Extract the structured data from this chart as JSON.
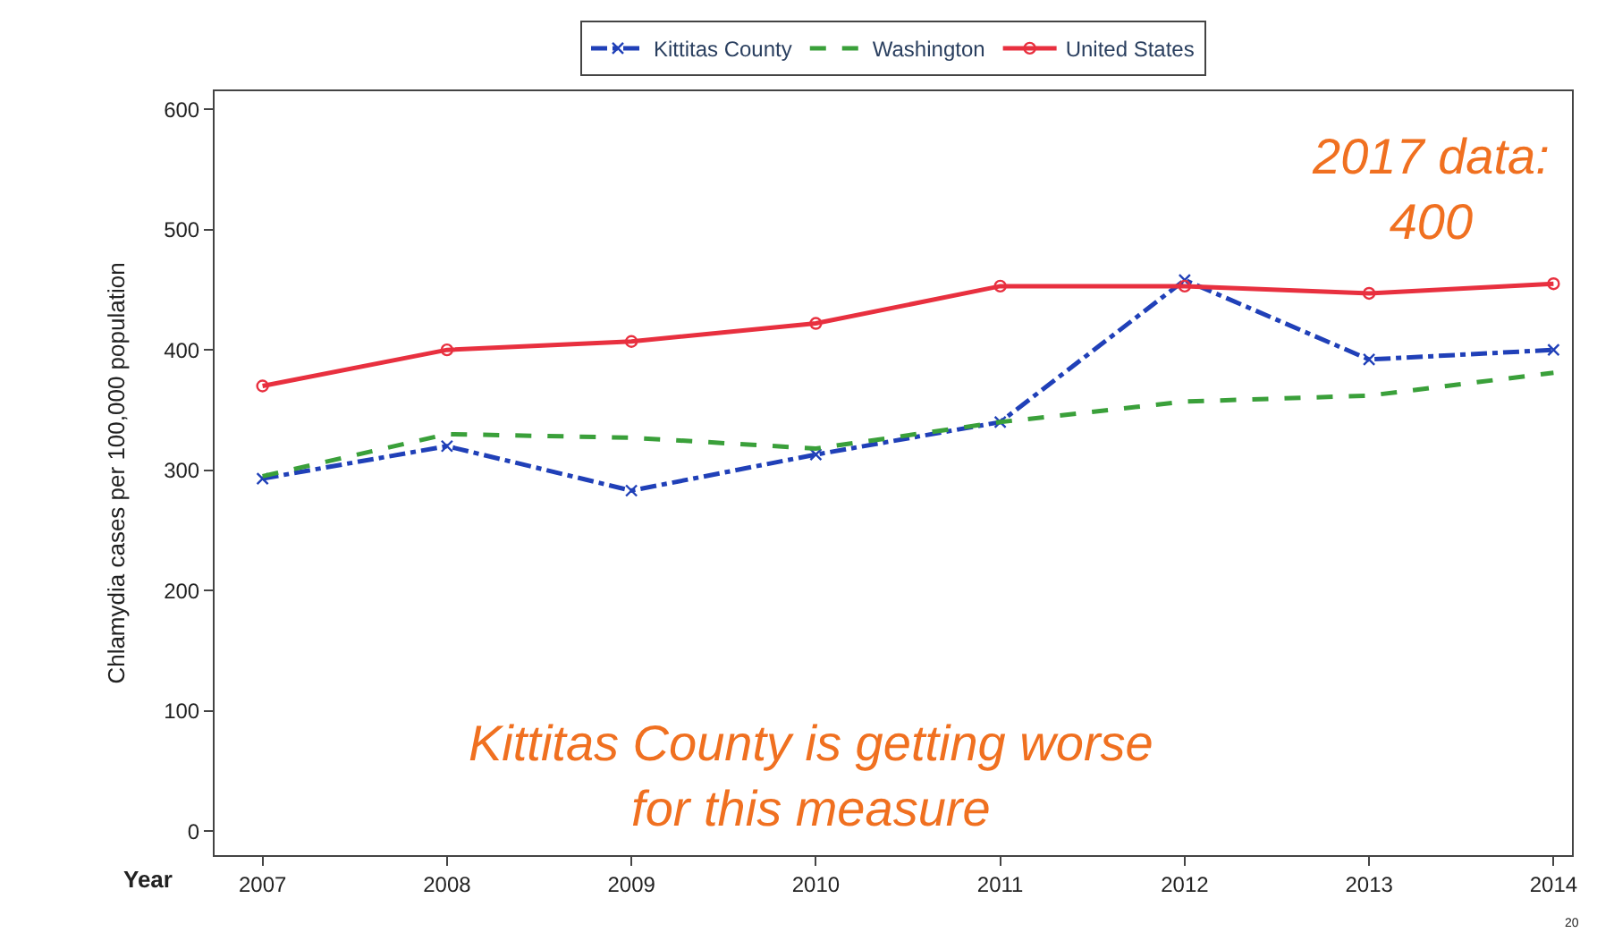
{
  "chart_data": {
    "type": "line",
    "xlabel": "Year",
    "ylabel": "Chlamydia cases per 100,000 population",
    "x": [
      2007,
      2008,
      2009,
      2010,
      2011,
      2012,
      2013,
      2014
    ],
    "xlim": [
      2006.74,
      2014.1
    ],
    "xticks": [
      2007,
      2008,
      2009,
      2010,
      2011,
      2012,
      2013,
      2014
    ],
    "ylim": [
      -20,
      615
    ],
    "yticks": [
      0,
      100,
      200,
      300,
      400,
      500,
      600
    ],
    "legend": "top",
    "series": [
      {
        "name": "Kittitas County",
        "color": "#2040b8",
        "line_style": "dashdot",
        "marker": "cross",
        "values": [
          293,
          320,
          283,
          313,
          340,
          458,
          392,
          400
        ]
      },
      {
        "name": "Washington",
        "color": "#3aa03a",
        "line_style": "dashed",
        "marker": "none",
        "values": [
          295,
          330,
          327,
          318,
          340,
          357,
          362,
          381
        ]
      },
      {
        "name": "United States",
        "color": "#e8303f",
        "line_style": "solid",
        "marker": "circle",
        "values": [
          370,
          400,
          407,
          422,
          453,
          453,
          447,
          455
        ]
      }
    ],
    "annotations": [
      "2017 data:\n400",
      "Kittitas County is getting worse\nfor this measure",
      "20"
    ]
  }
}
